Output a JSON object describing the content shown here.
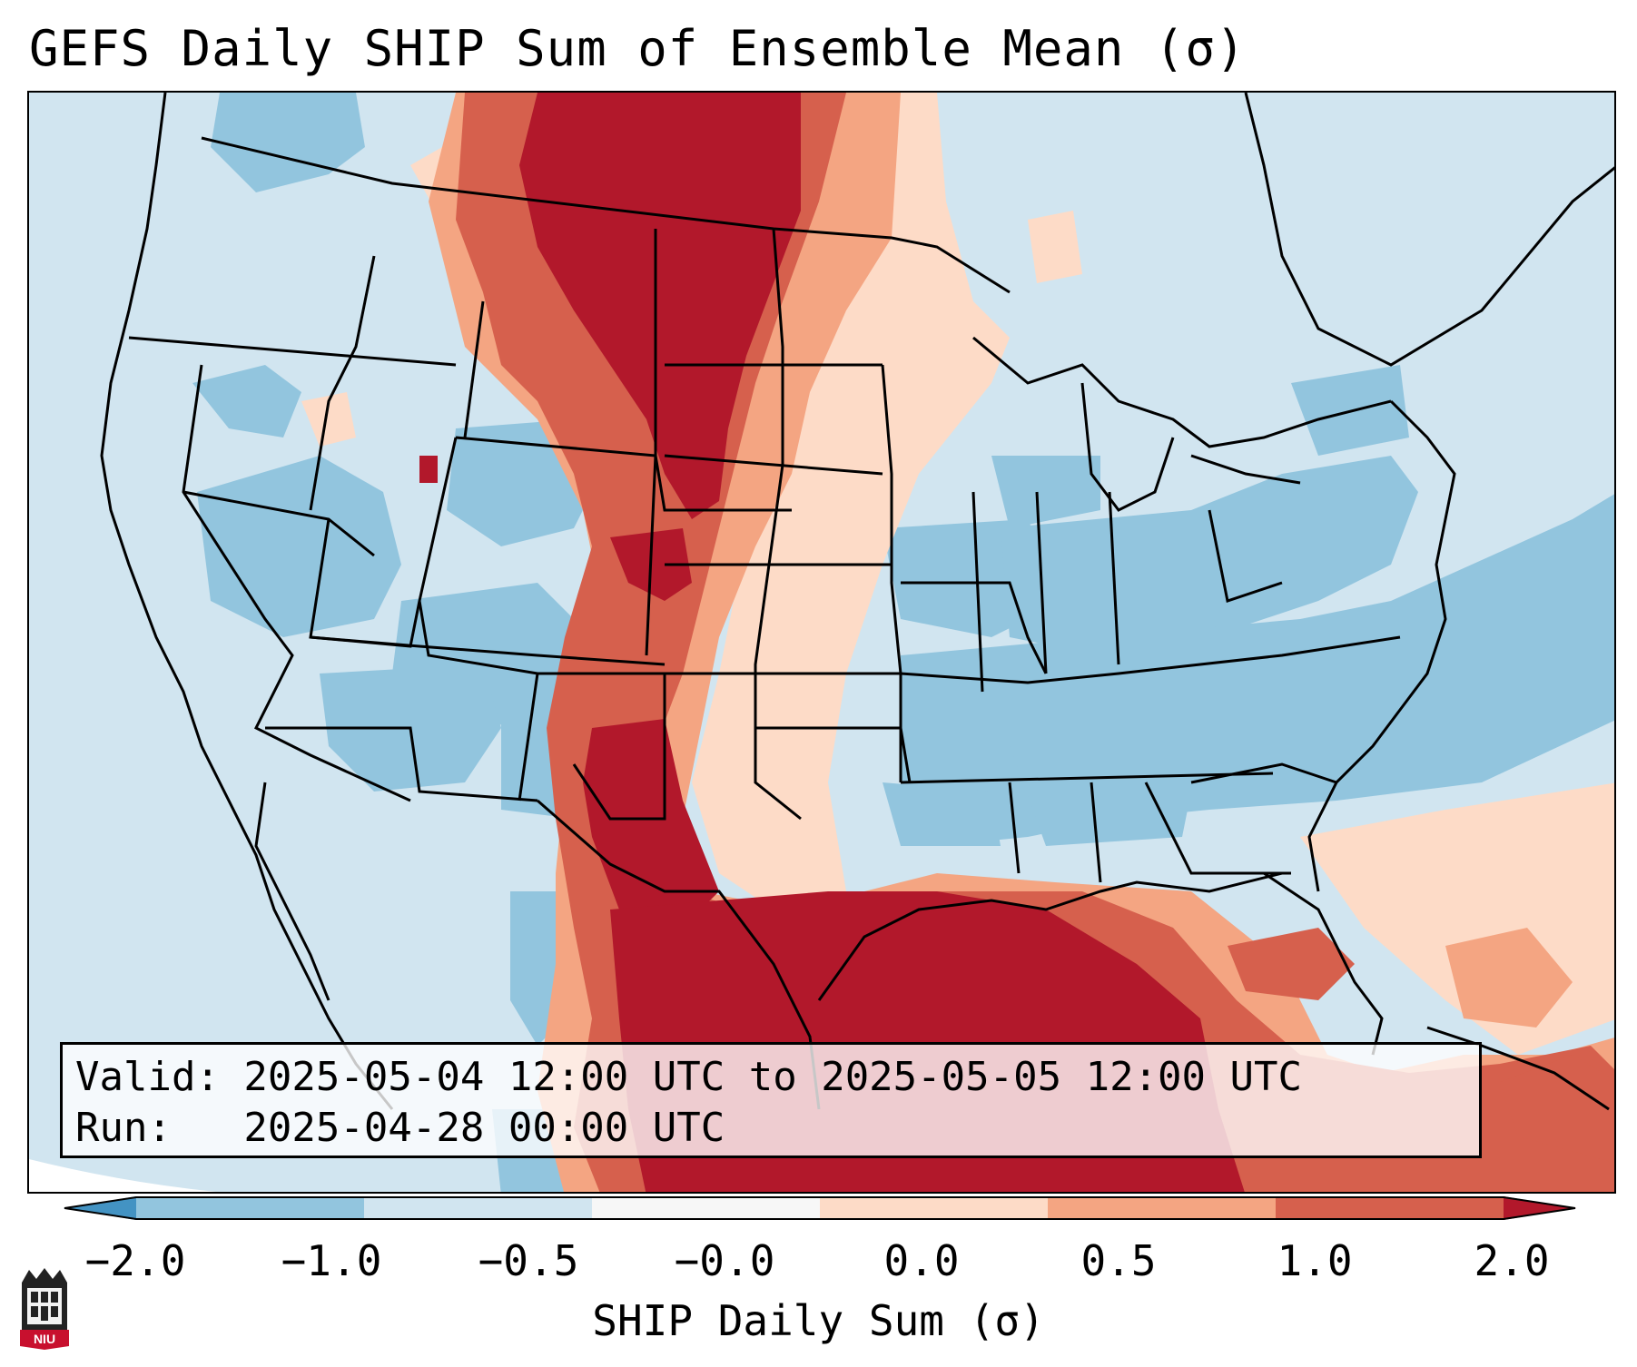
{
  "title": "GEFS Daily SHIP Sum of Ensemble Mean (σ)",
  "info": {
    "valid_line": "Valid: 2025-05-04 12:00 UTC to 2025-05-05 12:00 UTC",
    "run_line": "Run:   2025-04-28 00:00 UTC"
  },
  "colorbar": {
    "label": "SHIP Daily Sum (σ)",
    "ticks": [
      "−2.0",
      "−1.0",
      "−0.5",
      "−0.0",
      "0.0",
      "0.5",
      "1.0",
      "2.0"
    ],
    "colors": [
      "#4393c3",
      "#92c5de",
      "#d1e5f0",
      "#f7f7f7",
      "#fddbc7",
      "#f4a582",
      "#d6604d",
      "#b2182b"
    ]
  },
  "logo": {
    "text": "NIU"
  }
}
